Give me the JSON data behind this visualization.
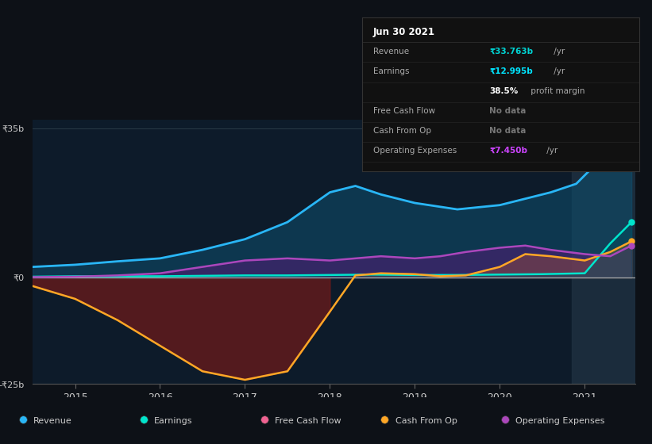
{
  "bg_color": "#0d1117",
  "plot_bg_color": "#0d1b2a",
  "ylim": [
    -25,
    37
  ],
  "xlabel_years": [
    "2015",
    "2016",
    "2017",
    "2018",
    "2019",
    "2020",
    "2021"
  ],
  "legend": [
    {
      "label": "Revenue",
      "color": "#29b6f6"
    },
    {
      "label": "Earnings",
      "color": "#00e5cc"
    },
    {
      "label": "Free Cash Flow",
      "color": "#f06292"
    },
    {
      "label": "Cash From Op",
      "color": "#ffa726"
    },
    {
      "label": "Operating Expenses",
      "color": "#ab47bc"
    }
  ],
  "x_revenue": [
    2014.5,
    2015.0,
    2015.5,
    2016.0,
    2016.5,
    2017.0,
    2017.5,
    2018.0,
    2018.3,
    2018.6,
    2019.0,
    2019.5,
    2020.0,
    2020.3,
    2020.6,
    2020.9,
    2021.0,
    2021.3,
    2021.55
  ],
  "y_revenue": [
    2.5,
    3.0,
    3.8,
    4.5,
    6.5,
    9.0,
    13.0,
    20.0,
    21.5,
    19.5,
    17.5,
    16.0,
    17.0,
    18.5,
    20.0,
    22.0,
    24.0,
    30.0,
    34.5
  ],
  "x_earnings": [
    2014.5,
    2015.0,
    2015.5,
    2016.0,
    2016.5,
    2017.0,
    2017.5,
    2018.0,
    2018.5,
    2019.0,
    2019.5,
    2020.0,
    2020.5,
    2021.0,
    2021.3,
    2021.55
  ],
  "y_earnings": [
    0.2,
    0.3,
    0.3,
    0.3,
    0.4,
    0.5,
    0.5,
    0.6,
    0.7,
    0.6,
    0.6,
    0.7,
    0.8,
    1.0,
    8.0,
    13.0
  ],
  "x_cashfromop": [
    2014.5,
    2015.0,
    2015.5,
    2016.0,
    2016.5,
    2017.0,
    2017.5,
    2018.0,
    2018.3,
    2018.6,
    2019.0,
    2019.3,
    2019.6,
    2020.0,
    2020.3,
    2020.6,
    2021.0,
    2021.3,
    2021.55
  ],
  "y_cashfromop": [
    -2.0,
    -5.0,
    -10.0,
    -16.0,
    -22.0,
    -24.0,
    -22.0,
    -8.0,
    0.5,
    1.0,
    0.8,
    0.3,
    0.5,
    2.5,
    5.5,
    5.0,
    4.0,
    6.0,
    8.5
  ],
  "x_opex": [
    2014.5,
    2015.0,
    2015.5,
    2016.0,
    2016.5,
    2017.0,
    2017.5,
    2018.0,
    2018.3,
    2018.6,
    2019.0,
    2019.3,
    2019.6,
    2020.0,
    2020.3,
    2020.6,
    2021.0,
    2021.3,
    2021.55
  ],
  "y_opex": [
    0.1,
    0.2,
    0.5,
    1.0,
    2.5,
    4.0,
    4.5,
    4.0,
    4.5,
    5.0,
    4.5,
    5.0,
    6.0,
    7.0,
    7.5,
    6.5,
    5.5,
    5.0,
    7.5
  ],
  "tooltip_title": "Jun 30 2021",
  "tooltip_rows": [
    {
      "label": "Revenue",
      "value": "₹33.763b",
      "suffix": " /yr",
      "vcolor": "#00d4d4"
    },
    {
      "label": "Earnings",
      "value": "₹12.995b",
      "suffix": " /yr",
      "vcolor": "#00e5ff"
    },
    {
      "label": "",
      "value": "38.5%",
      "suffix": " profit margin",
      "vcolor": "#ffffff"
    },
    {
      "label": "Free Cash Flow",
      "value": "No data",
      "suffix": "",
      "vcolor": "#777777"
    },
    {
      "label": "Cash From Op",
      "value": "No data",
      "suffix": "",
      "vcolor": "#777777"
    },
    {
      "label": "Operating Expenses",
      "value": "₹7.450b",
      "suffix": " /yr",
      "vcolor": "#cc44ff"
    }
  ]
}
